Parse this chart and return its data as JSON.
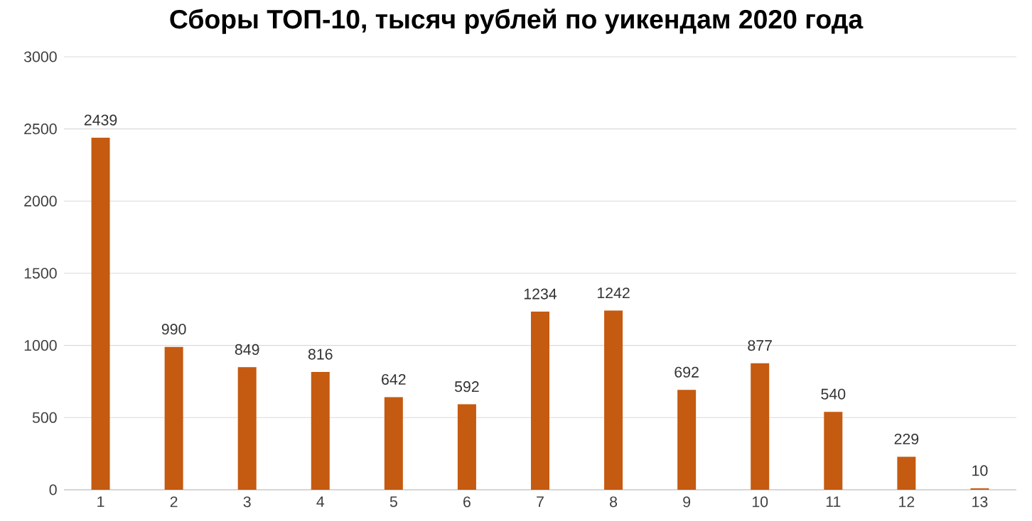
{
  "chart_data": {
    "type": "bar",
    "title": "Сборы ТОП-10, тысяч рублей по уикендам 2020 года",
    "categories": [
      "1",
      "2",
      "3",
      "4",
      "5",
      "6",
      "7",
      "8",
      "9",
      "10",
      "11",
      "12",
      "13"
    ],
    "values": [
      2439,
      990,
      849,
      816,
      642,
      592,
      1234,
      1242,
      692,
      877,
      540,
      229,
      10
    ],
    "color": "#c55a11",
    "ylim": [
      0,
      3000
    ],
    "yticks": [
      0,
      500,
      1000,
      1500,
      2000,
      2500,
      3000
    ],
    "grid": "y",
    "data_labels": true
  }
}
